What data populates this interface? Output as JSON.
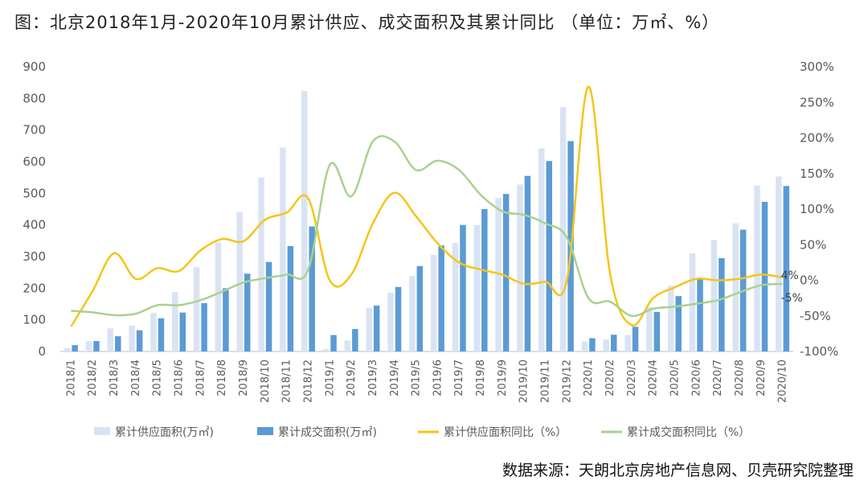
{
  "title": "图：北京2018年1月-2020年10月累计供应、成交面积及其累计同比 （单位：万㎡、%）",
  "source": "数据来源：天朗北京房地产信息网、贝壳研究院整理",
  "chart_data": {
    "type": "bar",
    "categories": [
      "2018/1",
      "2018/2",
      "2018/3",
      "2018/4",
      "2018/5",
      "2018/6",
      "2018/7",
      "2018/8",
      "2018/9",
      "2018/10",
      "2018/11",
      "2018/12",
      "2019/1",
      "2019/2",
      "2019/3",
      "2019/4",
      "2019/5",
      "2019/6",
      "2019/7",
      "2019/8",
      "2019/9",
      "2019/10",
      "2019/11",
      "2019/12",
      "2020/1",
      "2020/2",
      "2020/3",
      "2020/4",
      "2020/5",
      "2020/6",
      "2020/7",
      "2020/8",
      "2020/9",
      "2020/10"
    ],
    "series": [
      {
        "name": "累计供应面积(万㎡)",
        "axis": "left",
        "kind": "bar",
        "color": "#dae3f3",
        "values": [
          10,
          33,
          73,
          82,
          122,
          188,
          266,
          345,
          440,
          550,
          645,
          823,
          8,
          35,
          138,
          186,
          238,
          305,
          343,
          400,
          485,
          528,
          642,
          773,
          32,
          38,
          52,
          140,
          208,
          310,
          352,
          405,
          525,
          553
        ]
      },
      {
        "name": "累计成交面积(万㎡)",
        "axis": "left",
        "kind": "bar",
        "color": "#5b9bd5",
        "values": [
          20,
          33,
          48,
          67,
          105,
          123,
          153,
          200,
          246,
          283,
          333,
          395,
          52,
          71,
          145,
          204,
          270,
          335,
          400,
          450,
          498,
          555,
          602,
          665,
          42,
          53,
          78,
          125,
          175,
          233,
          295,
          385,
          473,
          523
        ]
      },
      {
        "name": "累计供应面积同比（%）",
        "axis": "right",
        "kind": "line",
        "color": "#f5c518",
        "values": [
          -65,
          -15,
          38,
          2,
          17,
          13,
          42,
          58,
          55,
          85,
          95,
          115,
          0,
          8,
          80,
          123,
          90,
          52,
          25,
          15,
          8,
          -5,
          -2,
          0,
          272,
          10,
          -63,
          -25,
          -10,
          2,
          0,
          2,
          8,
          4
        ]
      },
      {
        "name": "累计成交面积同比（%）",
        "axis": "right",
        "kind": "line",
        "color": "#a9d18e",
        "values": [
          -43,
          -45,
          -49,
          -47,
          -35,
          -35,
          -28,
          -16,
          -3,
          3,
          8,
          15,
          162,
          118,
          195,
          195,
          155,
          168,
          155,
          120,
          97,
          92,
          80,
          60,
          -25,
          -30,
          -50,
          -40,
          -37,
          -33,
          -28,
          -17,
          -7,
          -5
        ]
      }
    ],
    "yleft": {
      "min": 0,
      "max": 900,
      "step": 100,
      "tick_labels": [
        "0",
        "100",
        "200",
        "300",
        "400",
        "500",
        "600",
        "700",
        "800",
        "900"
      ]
    },
    "yright": {
      "min": -100,
      "max": 300,
      "step": 50,
      "tick_labels": [
        "-100%",
        "-50%",
        "0%",
        "50%",
        "100%",
        "150%",
        "200%",
        "250%",
        "300%"
      ]
    },
    "annotations": [
      {
        "text": "4%",
        "series": 2,
        "index": 33
      },
      {
        "text": "-5%",
        "series": 3,
        "index": 33
      }
    ],
    "legend_position": "bottom",
    "grid": false
  }
}
